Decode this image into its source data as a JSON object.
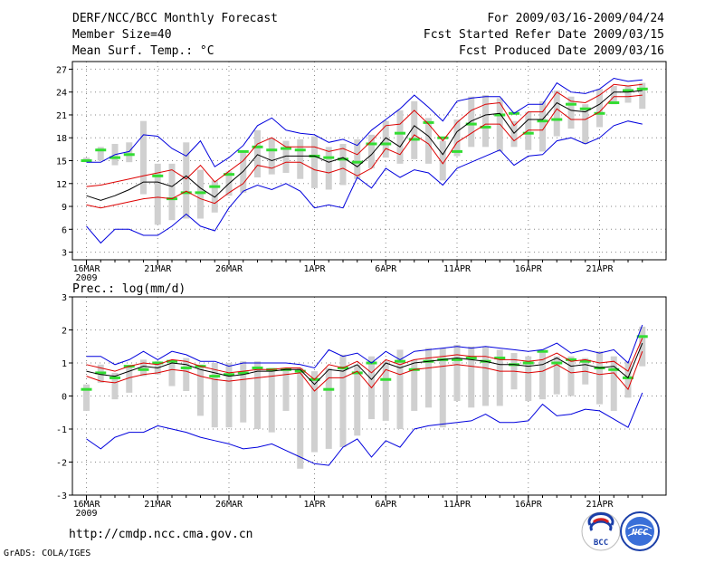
{
  "header": {
    "title": "DERF/NCC/BCC Monthly Forecast",
    "member_size": "Member Size=40",
    "variable": "Mean Surf. Temp.: °C",
    "forecast_period": "For 2009/03/16-2009/04/24",
    "fcst_started": "Fcst Started Refer Date 2009/03/15",
    "fcst_produced": "Fcst Produced Date 2009/03/16"
  },
  "footer": {
    "url": "http://cmdp.ncc.cma.gov.cn",
    "credit": "GrADS: COLA/IGES",
    "logo_bcc_text": "BCC",
    "logo_ncc_text": "NCC"
  },
  "colors": {
    "envelope": "#0000dd",
    "spread": "#dd0000",
    "mean": "#000000",
    "bar": "#d0d0d0",
    "marker": "#33dd33",
    "grid": "#888888"
  },
  "chart_data": [
    {
      "type": "line",
      "title": "Mean Surf. Temp.: °C",
      "ylim": [
        2,
        28
      ],
      "yticks": [
        3,
        6,
        9,
        12,
        15,
        18,
        21,
        24,
        27
      ],
      "year_label": "2009",
      "x_tick_labels": [
        {
          "day": 1,
          "label": "16MAR"
        },
        {
          "day": 6,
          "label": "21MAR"
        },
        {
          "day": 11,
          "label": "26MAR"
        },
        {
          "day": 17,
          "label": "1APR"
        },
        {
          "day": 22,
          "label": "6APR"
        },
        {
          "day": 27,
          "label": "11APR"
        },
        {
          "day": 32,
          "label": "16APR"
        },
        {
          "day": 37,
          "label": "21APR"
        }
      ],
      "days": [
        1,
        2,
        3,
        4,
        5,
        6,
        7,
        8,
        9,
        10,
        11,
        12,
        13,
        14,
        15,
        16,
        17,
        18,
        19,
        20,
        21,
        22,
        23,
        24,
        25,
        26,
        27,
        28,
        29,
        30,
        31,
        32,
        33,
        34,
        35,
        36,
        37,
        38,
        39,
        40
      ],
      "series": [
        {
          "name": "max",
          "values": [
            14.8,
            14.8,
            15.8,
            16.2,
            18.4,
            18.2,
            16.6,
            15.6,
            17.6,
            14.2,
            15.4,
            17.0,
            19.6,
            20.6,
            19.0,
            18.6,
            18.4,
            17.4,
            17.8,
            17.0,
            19.0,
            20.4,
            21.8,
            23.6,
            22.0,
            20.2,
            22.8,
            23.2,
            23.4,
            23.4,
            21.2,
            22.4,
            22.4,
            25.2,
            24.0,
            23.8,
            24.4,
            25.8,
            25.4,
            25.6
          ]
        },
        {
          "name": "upper",
          "values": [
            11.6,
            11.8,
            12.2,
            12.6,
            13.0,
            13.4,
            13.8,
            12.6,
            14.4,
            12.2,
            13.6,
            15.0,
            17.2,
            18.0,
            16.8,
            16.8,
            16.8,
            16.2,
            16.6,
            15.8,
            17.6,
            19.6,
            19.8,
            21.6,
            19.8,
            17.6,
            20.0,
            21.6,
            22.4,
            22.6,
            19.6,
            21.4,
            21.4,
            24.0,
            22.8,
            22.6,
            23.6,
            25.0,
            24.8,
            25.0
          ]
        },
        {
          "name": "mean",
          "values": [
            10.4,
            9.8,
            10.4,
            11.2,
            12.2,
            12.2,
            11.6,
            13.0,
            11.4,
            10.2,
            12.0,
            13.6,
            15.8,
            15.0,
            15.6,
            15.6,
            15.6,
            14.8,
            15.4,
            14.2,
            15.8,
            18.0,
            16.8,
            19.6,
            18.2,
            15.8,
            18.8,
            20.2,
            21.0,
            21.2,
            18.6,
            20.4,
            20.4,
            22.6,
            21.6,
            21.4,
            22.4,
            24.0,
            24.0,
            24.2
          ]
        },
        {
          "name": "lower",
          "values": [
            9.2,
            8.8,
            9.2,
            9.6,
            10.0,
            10.2,
            10.0,
            11.0,
            10.0,
            9.4,
            10.8,
            12.0,
            14.4,
            14.0,
            14.8,
            14.8,
            13.8,
            13.4,
            14.0,
            13.0,
            14.0,
            16.6,
            15.8,
            18.4,
            17.2,
            14.6,
            17.4,
            18.6,
            19.8,
            19.8,
            17.6,
            19.0,
            19.0,
            21.8,
            20.4,
            20.4,
            21.4,
            23.4,
            23.4,
            23.6
          ]
        },
        {
          "name": "min",
          "values": [
            6.4,
            4.2,
            6.0,
            6.0,
            5.2,
            5.2,
            6.4,
            8.0,
            6.4,
            5.8,
            8.8,
            11.0,
            11.8,
            11.2,
            12.0,
            11.0,
            8.8,
            9.2,
            8.8,
            12.8,
            11.4,
            14.0,
            12.8,
            13.8,
            13.4,
            11.8,
            14.0,
            14.8,
            15.6,
            16.4,
            14.4,
            15.6,
            15.8,
            17.6,
            18.0,
            17.2,
            18.0,
            19.6,
            20.2,
            19.8
          ]
        }
      ],
      "bars": {
        "low": [
          14.8,
          15.0,
          14.4,
          14.8,
          10.6,
          6.6,
          7.2,
          7.4,
          7.4,
          8.2,
          10.4,
          10.8,
          12.8,
          13.2,
          13.4,
          12.6,
          11.4,
          11.2,
          11.8,
          12.6,
          14.0,
          15.4,
          14.6,
          15.2,
          14.6,
          12.4,
          15.6,
          16.8,
          16.8,
          16.2,
          16.8,
          16.4,
          16.2,
          18.2,
          19.2,
          17.2,
          19.4,
          22.4,
          22.6,
          21.8
        ],
        "high": [
          15.4,
          16.8,
          17.2,
          17.4,
          20.2,
          14.6,
          14.6,
          17.4,
          13.8,
          12.4,
          13.6,
          16.2,
          19.0,
          18.0,
          17.6,
          17.8,
          18.2,
          16.8,
          17.2,
          17.8,
          18.4,
          20.2,
          21.6,
          22.8,
          20.6,
          17.6,
          20.4,
          23.4,
          23.6,
          23.2,
          20.2,
          21.4,
          22.8,
          24.2,
          23.4,
          22.4,
          24.4,
          24.8,
          24.8,
          25.2
        ]
      },
      "markers": [
        15.0,
        16.4,
        15.4,
        15.8,
        null,
        13.0,
        10.0,
        10.8,
        10.8,
        11.6,
        13.2,
        16.2,
        16.8,
        16.4,
        16.6,
        16.4,
        15.6,
        15.4,
        15.2,
        14.8,
        17.2,
        17.2,
        18.6,
        17.8,
        20.0,
        18.0,
        16.2,
        19.8,
        19.4,
        21.0,
        21.2,
        18.6,
        20.2,
        20.4,
        22.4,
        21.8,
        21.2,
        22.6,
        24.2,
        24.4
      ]
    },
    {
      "type": "line",
      "title": "Prec.: log(mm/d)",
      "ylim": [
        -3,
        3
      ],
      "yticks": [
        -3,
        -2,
        -1,
        0,
        1,
        2,
        3
      ],
      "year_label": "2009",
      "x_tick_labels": [
        {
          "day": 1,
          "label": "16MAR"
        },
        {
          "day": 6,
          "label": "21MAR"
        },
        {
          "day": 11,
          "label": "26MAR"
        },
        {
          "day": 17,
          "label": "1APR"
        },
        {
          "day": 22,
          "label": "6APR"
        },
        {
          "day": 27,
          "label": "11APR"
        },
        {
          "day": 32,
          "label": "16APR"
        },
        {
          "day": 37,
          "label": "21APR"
        }
      ],
      "days": [
        1,
        2,
        3,
        4,
        5,
        6,
        7,
        8,
        9,
        10,
        11,
        12,
        13,
        14,
        15,
        16,
        17,
        18,
        19,
        20,
        21,
        22,
        23,
        24,
        25,
        26,
        27,
        28,
        29,
        30,
        31,
        32,
        33,
        34,
        35,
        36,
        37,
        38,
        39,
        40
      ],
      "series": [
        {
          "name": "max",
          "values": [
            1.2,
            1.2,
            0.95,
            1.1,
            1.35,
            1.1,
            1.35,
            1.25,
            1.05,
            1.05,
            0.9,
            1.0,
            1.0,
            1.0,
            1.0,
            0.95,
            0.85,
            1.4,
            1.2,
            1.3,
            1.0,
            1.35,
            1.1,
            1.35,
            1.4,
            1.45,
            1.5,
            1.45,
            1.5,
            1.45,
            1.4,
            1.35,
            1.4,
            1.6,
            1.3,
            1.4,
            1.3,
            1.4,
            1.0,
            2.15
          ]
        },
        {
          "name": "upper",
          "values": [
            0.95,
            0.85,
            0.75,
            0.9,
            1.0,
            0.95,
            1.1,
            1.05,
            0.9,
            0.8,
            0.7,
            0.75,
            0.8,
            0.8,
            0.85,
            0.85,
            0.5,
            0.95,
            0.85,
            1.05,
            0.7,
            1.1,
            0.95,
            1.1,
            1.15,
            1.2,
            1.25,
            1.2,
            1.2,
            1.1,
            1.1,
            1.05,
            1.1,
            1.3,
            1.05,
            1.1,
            1.0,
            1.05,
            0.75,
            1.75
          ]
        },
        {
          "name": "mean",
          "values": [
            0.75,
            0.65,
            0.6,
            0.75,
            0.9,
            0.85,
            1.0,
            0.95,
            0.8,
            0.7,
            0.6,
            0.65,
            0.75,
            0.75,
            0.8,
            0.8,
            0.35,
            0.8,
            0.75,
            0.95,
            0.5,
            1.0,
            0.85,
            1.0,
            1.05,
            1.1,
            1.15,
            1.1,
            1.05,
            0.95,
            0.95,
            0.9,
            0.95,
            1.15,
            0.9,
            0.95,
            0.85,
            0.9,
            0.55,
            1.6
          ]
        },
        {
          "name": "lower",
          "values": [
            0.6,
            0.45,
            0.4,
            0.55,
            0.65,
            0.7,
            0.8,
            0.75,
            0.6,
            0.5,
            0.45,
            0.5,
            0.55,
            0.6,
            0.65,
            0.7,
            0.15,
            0.55,
            0.55,
            0.75,
            0.25,
            0.8,
            0.65,
            0.8,
            0.85,
            0.9,
            0.95,
            0.9,
            0.85,
            0.75,
            0.75,
            0.7,
            0.75,
            0.95,
            0.7,
            0.75,
            0.65,
            0.7,
            0.2,
            1.35
          ]
        },
        {
          "name": "min",
          "values": [
            -1.3,
            -1.6,
            -1.25,
            -1.1,
            -1.1,
            -0.9,
            -1.0,
            -1.1,
            -1.25,
            -1.35,
            -1.45,
            -1.6,
            -1.55,
            -1.45,
            -1.65,
            -1.85,
            -2.05,
            -2.1,
            -1.55,
            -1.3,
            -1.85,
            -1.35,
            -1.55,
            -1.0,
            -0.9,
            -0.85,
            -0.8,
            -0.75,
            -0.55,
            -0.8,
            -0.8,
            -0.75,
            -0.25,
            -0.6,
            -0.55,
            -0.4,
            -0.45,
            -0.7,
            -0.95,
            0.1
          ]
        }
      ],
      "bars": {
        "low": [
          -0.45,
          0.4,
          -0.1,
          0.1,
          0.6,
          0.65,
          0.3,
          0.15,
          -0.6,
          -0.95,
          -0.95,
          -0.8,
          -1.0,
          -1.1,
          -0.45,
          -2.2,
          -1.7,
          -1.6,
          -1.55,
          -1.2,
          -0.7,
          -0.75,
          -1.0,
          -0.45,
          -0.35,
          -0.95,
          -0.15,
          -0.35,
          -0.3,
          -0.3,
          0.2,
          -0.15,
          -0.1,
          0.05,
          0.0,
          0.35,
          -0.25,
          -0.45,
          -0.05,
          0.9
        ],
        "high": [
          0.35,
          0.95,
          0.7,
          0.9,
          1.1,
          1.05,
          1.1,
          1.15,
          0.95,
          1.0,
          1.0,
          1.05,
          1.05,
          0.85,
          0.85,
          0.85,
          0.75,
          0.85,
          1.25,
          0.95,
          1.2,
          1.05,
          1.4,
          1.1,
          1.45,
          1.45,
          1.55,
          1.5,
          1.5,
          1.4,
          1.3,
          1.2,
          1.4,
          1.2,
          1.2,
          1.15,
          1.35,
          1.2,
          1.05,
          2.1
        ]
      },
      "markers": [
        0.2,
        0.7,
        0.55,
        0.9,
        0.8,
        1.0,
        1.05,
        0.85,
        0.9,
        0.6,
        0.65,
        0.7,
        0.85,
        0.8,
        0.8,
        0.75,
        0.5,
        0.2,
        0.85,
        0.7,
        1.0,
        0.5,
        1.05,
        0.8,
        1.05,
        1.1,
        1.1,
        1.15,
        1.05,
        1.15,
        0.95,
        1.0,
        1.35,
        1.0,
        1.1,
        1.05,
        0.85,
        0.8,
        0.55,
        1.8
      ]
    }
  ]
}
